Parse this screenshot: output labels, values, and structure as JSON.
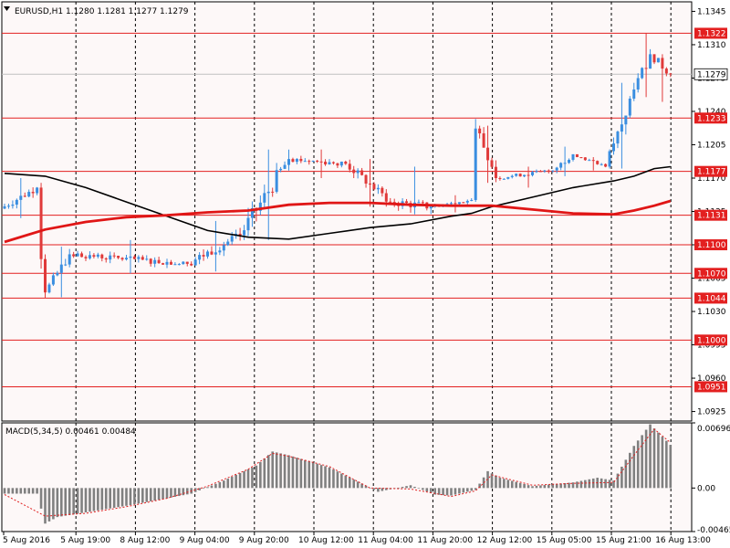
{
  "colors": {
    "background": "#FFFFFF",
    "plot_background": "#FDF8F8",
    "grid": "#000000",
    "level_line": "#E32020",
    "level_label_bg": "#E32020",
    "bull_candle": "#3A8EE0",
    "bear_candle": "#E03A3A",
    "ma_fast": "#000000",
    "ma_slow": "#E01616",
    "macd_hist": "#808080",
    "macd_signal": "#E02020",
    "current_price_line": "#C0C0C0"
  },
  "chart_data": [
    {
      "type": "candlestick",
      "title": "EURUSD,H1  1.1280 1.1281 1.1277 1.1279",
      "x_tick_labels": [
        "5 Aug 2016",
        "5 Aug 19:00",
        "8 Aug 12:00",
        "9 Aug 04:00",
        "9 Aug 20:00",
        "10 Aug 12:00",
        "11 Aug 04:00",
        "11 Aug 20:00",
        "12 Aug 12:00",
        "15 Aug 05:00",
        "15 Aug 21:00",
        "16 Aug 13:00"
      ],
      "y_tick_labels": [
        "1.1345",
        "1.1310",
        "1.1275",
        "1.1240",
        "1.1205",
        "1.1170",
        "1.1135",
        "1.1100",
        "1.1065",
        "1.1030",
        "1.0995",
        "1.0960",
        "1.0925"
      ],
      "ylim": [
        1.0915,
        1.1355
      ],
      "grid": true,
      "current_price": 1.1279,
      "current_price_label": "1.1279",
      "levels": [
        {
          "value": 1.1322,
          "label": "1.1322"
        },
        {
          "value": 1.1233,
          "label": "1.1233"
        },
        {
          "value": 1.1177,
          "label": "1.1177"
        },
        {
          "value": 1.1131,
          "label": "1.1131"
        },
        {
          "value": 1.11,
          "label": "1.1100"
        },
        {
          "value": 1.107,
          "label": "1.1070"
        },
        {
          "value": 1.1044,
          "label": "1.1044"
        },
        {
          "value": 1.1,
          "label": "1.1000"
        },
        {
          "value": 1.0951,
          "label": "1.0951"
        }
      ],
      "series": [
        {
          "kind": "ohlc_segments",
          "segments": [
            {
              "from_bar": 0,
              "to_bar": 8,
              "open": 1.1138,
              "close": 1.116,
              "low": 1.1128,
              "high": 1.117
            },
            {
              "from_bar": 9,
              "to_bar": 9,
              "open": 1.116,
              "close": 1.1085,
              "low": 1.1075,
              "high": 1.1165
            },
            {
              "from_bar": 10,
              "to_bar": 10,
              "open": 1.1085,
              "close": 1.105,
              "low": 1.1044,
              "high": 1.109
            },
            {
              "from_bar": 11,
              "to_bar": 16,
              "open": 1.105,
              "close": 1.109,
              "low": 1.1045,
              "high": 1.1098
            },
            {
              "from_bar": 17,
              "to_bar": 45,
              "open": 1.109,
              "close": 1.108,
              "low": 1.107,
              "high": 1.1105
            },
            {
              "from_bar": 46,
              "to_bar": 58,
              "open": 1.108,
              "close": 1.111,
              "low": 1.1072,
              "high": 1.1125
            },
            {
              "from_bar": 59,
              "to_bar": 70,
              "open": 1.111,
              "close": 1.119,
              "low": 1.1105,
              "high": 1.12
            },
            {
              "from_bar": 71,
              "to_bar": 84,
              "open": 1.119,
              "close": 1.1185,
              "low": 1.117,
              "high": 1.12
            },
            {
              "from_bar": 85,
              "to_bar": 95,
              "open": 1.1185,
              "close": 1.1145,
              "low": 1.114,
              "high": 1.119
            },
            {
              "from_bar": 96,
              "to_bar": 105,
              "open": 1.1145,
              "close": 1.114,
              "low": 1.1132,
              "high": 1.1182
            },
            {
              "from_bar": 106,
              "to_bar": 115,
              "open": 1.114,
              "close": 1.1147,
              "low": 1.1134,
              "high": 1.1152
            },
            {
              "from_bar": 116,
              "to_bar": 116,
              "open": 1.1147,
              "close": 1.1222,
              "low": 1.1145,
              "high": 1.1232
            },
            {
              "from_bar": 117,
              "to_bar": 121,
              "open": 1.1222,
              "close": 1.117,
              "low": 1.1165,
              "high": 1.1225
            },
            {
              "from_bar": 122,
              "to_bar": 135,
              "open": 1.117,
              "close": 1.1178,
              "low": 1.116,
              "high": 1.1182
            },
            {
              "from_bar": 136,
              "to_bar": 140,
              "open": 1.1178,
              "close": 1.1195,
              "low": 1.1172,
              "high": 1.1203
            },
            {
              "from_bar": 141,
              "to_bar": 148,
              "open": 1.1195,
              "close": 1.1182,
              "low": 1.1178,
              "high": 1.1192
            },
            {
              "from_bar": 149,
              "to_bar": 155,
              "open": 1.1182,
              "close": 1.1263,
              "low": 1.118,
              "high": 1.127
            },
            {
              "from_bar": 156,
              "to_bar": 159,
              "open": 1.1263,
              "close": 1.13,
              "low": 1.1255,
              "high": 1.1322
            },
            {
              "from_bar": 160,
              "to_bar": 164,
              "open": 1.13,
              "close": 1.1279,
              "low": 1.125,
              "high": 1.13
            }
          ]
        },
        {
          "kind": "line",
          "key": "ma_fast",
          "color": "#000000",
          "points": [
            [
              0,
              1.1175
            ],
            [
              10,
              1.1172
            ],
            [
              20,
              1.116
            ],
            [
              30,
              1.1145
            ],
            [
              40,
              1.113
            ],
            [
              50,
              1.1115
            ],
            [
              60,
              1.1108
            ],
            [
              70,
              1.1106
            ],
            [
              80,
              1.1112
            ],
            [
              90,
              1.1118
            ],
            [
              100,
              1.1122
            ],
            [
              110,
              1.113
            ],
            [
              115,
              1.1133
            ],
            [
              120,
              1.114
            ],
            [
              130,
              1.115
            ],
            [
              140,
              1.116
            ],
            [
              150,
              1.1167
            ],
            [
              155,
              1.1172
            ],
            [
              160,
              1.118
            ],
            [
              164,
              1.1182
            ]
          ]
        },
        {
          "kind": "line",
          "key": "ma_slow",
          "color": "#E01616",
          "points": [
            [
              0,
              1.1103
            ],
            [
              10,
              1.1116
            ],
            [
              20,
              1.1124
            ],
            [
              30,
              1.1129
            ],
            [
              40,
              1.1131
            ],
            [
              50,
              1.1134
            ],
            [
              60,
              1.1136
            ],
            [
              70,
              1.1142
            ],
            [
              80,
              1.1144
            ],
            [
              90,
              1.1144
            ],
            [
              100,
              1.1142
            ],
            [
              110,
              1.1141
            ],
            [
              120,
              1.1141
            ],
            [
              130,
              1.1137
            ],
            [
              140,
              1.1133
            ],
            [
              150,
              1.1132
            ],
            [
              155,
              1.1136
            ],
            [
              160,
              1.1141
            ],
            [
              164,
              1.1146
            ]
          ]
        }
      ]
    },
    {
      "type": "bar",
      "title": "MACD(5,34,5) 0.00461 0.00484",
      "y_tick_labels": [
        "0.00696",
        "0.00",
        "-0.00465"
      ],
      "ylim": [
        -0.00465,
        0.00696
      ],
      "hist_anchors": [
        [
          0,
          -0.0006
        ],
        [
          8,
          -0.0006
        ],
        [
          10,
          -0.0038
        ],
        [
          13,
          -0.0031
        ],
        [
          20,
          -0.0026
        ],
        [
          30,
          -0.0019
        ],
        [
          40,
          -0.0011
        ],
        [
          46,
          -0.0006
        ],
        [
          54,
          0.0008
        ],
        [
          62,
          0.0024
        ],
        [
          66,
          0.0039
        ],
        [
          70,
          0.0035
        ],
        [
          80,
          0.0022
        ],
        [
          86,
          0.0009
        ],
        [
          92,
          -0.0004
        ],
        [
          100,
          0.0003
        ],
        [
          106,
          -0.0007
        ],
        [
          110,
          -0.0008
        ],
        [
          116,
          -0.0002
        ],
        [
          119,
          0.0018
        ],
        [
          122,
          0.0011
        ],
        [
          130,
          0.0002
        ],
        [
          140,
          0.0006
        ],
        [
          146,
          0.0011
        ],
        [
          150,
          0.0008
        ],
        [
          155,
          0.0045
        ],
        [
          159,
          0.0068
        ],
        [
          164,
          0.00461
        ]
      ],
      "signal_anchors": [
        [
          0,
          -0.0007
        ],
        [
          10,
          -0.003
        ],
        [
          20,
          -0.0027
        ],
        [
          30,
          -0.002
        ],
        [
          40,
          -0.0011
        ],
        [
          50,
          0.0002
        ],
        [
          60,
          0.002
        ],
        [
          66,
          0.0037
        ],
        [
          70,
          0.0034
        ],
        [
          80,
          0.0023
        ],
        [
          90,
          0.0
        ],
        [
          100,
          -0.0001
        ],
        [
          110,
          -0.0009
        ],
        [
          116,
          -0.0003
        ],
        [
          120,
          0.0014
        ],
        [
          130,
          0.0003
        ],
        [
          140,
          0.0005
        ],
        [
          150,
          0.0006
        ],
        [
          155,
          0.0035
        ],
        [
          160,
          0.0063
        ],
        [
          164,
          0.00484
        ]
      ]
    }
  ]
}
